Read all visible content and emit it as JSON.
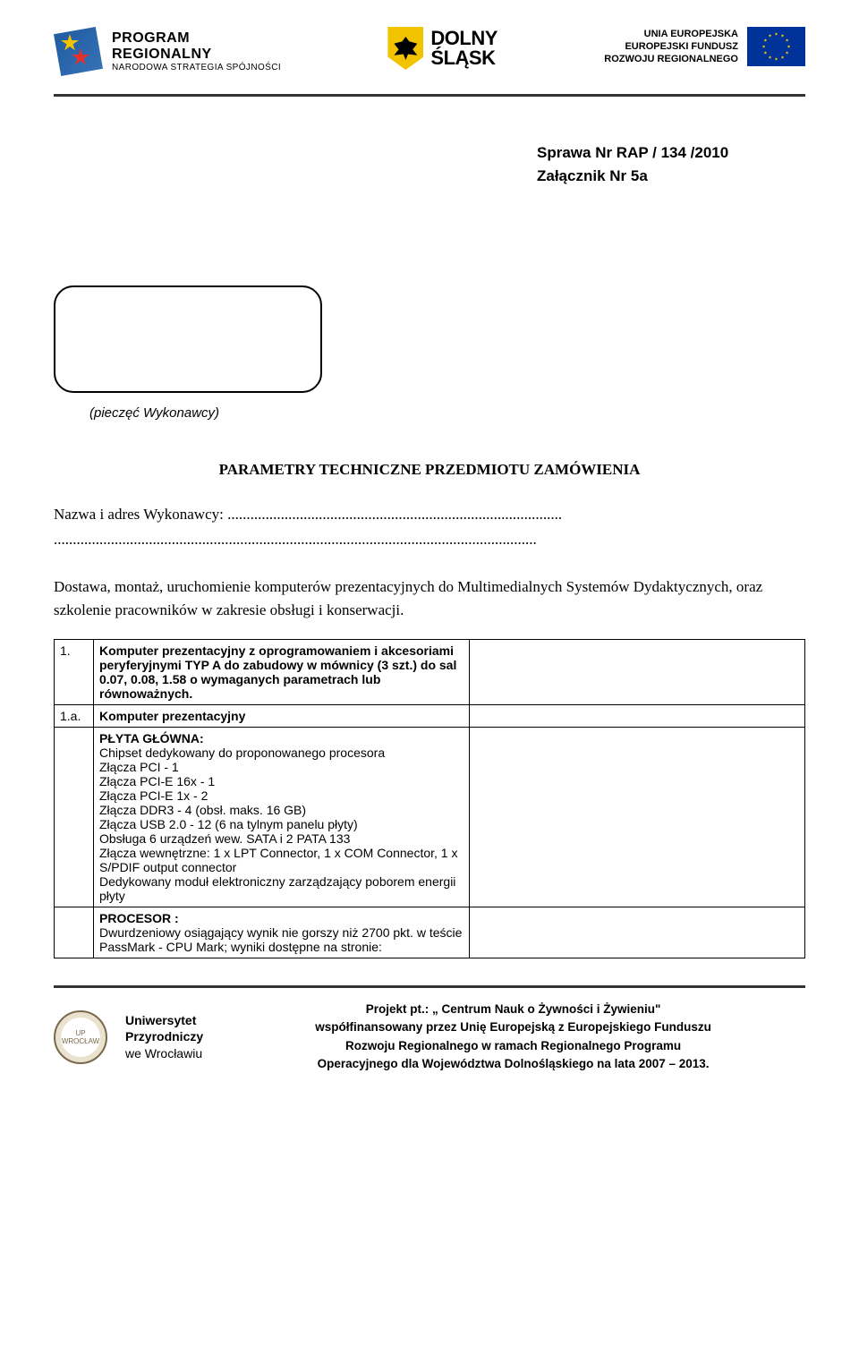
{
  "logos": {
    "program": {
      "line1": "PROGRAM",
      "line2": "REGIONALNY",
      "line3": "NARODOWA STRATEGIA SPÓJNOŚCI"
    },
    "slask": {
      "line1": "DOLNY",
      "line2": "ŚLĄSK"
    },
    "eu": {
      "line1": "UNIA EUROPEJSKA",
      "line2": "EUROPEJSKI FUNDUSZ",
      "line3": "ROZWOJU REGIONALNEGO"
    }
  },
  "case": {
    "line1": "Sprawa Nr RAP  / 134 /2010",
    "line2": " Załącznik Nr 5a"
  },
  "stamp_caption": "(pieczęć  Wykonawcy)",
  "title": "PARAMETRY  TECHNICZNE  PRZEDMIOTU  ZAMÓWIENIA",
  "contractor_label": "Nazwa i adres Wykonawcy: ........................................................................................",
  "contractor_dots": "...............................................................................................................................",
  "supply": "Dostawa, montaż, uruchomienie komputerów prezentacyjnych do Multimedialnych Systemów Dydaktycznych, oraz szkolenie pracowników w zakresie obsługi i konserwacji.",
  "table": {
    "row1": {
      "num": "1.",
      "text": "Komputer prezentacyjny z oprogramowaniem i akcesoriami peryferyjnymi TYP A do zabudowy w mównicy (3 szt.) do sal 0.07, 0.08, 1.58 o wymaganych parametrach lub równoważnych."
    },
    "row2": {
      "num": "1.a.",
      "text": "Komputer prezentacyjny"
    },
    "row3": {
      "heading": "PŁYTA GŁÓWNA",
      "l1": "Chipset dedykowany do proponowanego procesora",
      "l2": "Złącza PCI - 1",
      "l3": "Złącza PCI-E 16x - 1",
      "l4": "Złącza PCI-E 1x - 2",
      "l5": "Złącza DDR3 - 4 (obsł. maks. 16 GB)",
      "l6": "Złącza USB 2.0 - 12 (6 na tylnym panelu płyty)",
      "l7": "Obsługa 6 urządzeń wew. SATA i 2 PATA 133",
      "l8": "Złącza wewnętrzne: 1 x LPT Connector, 1 x COM Connector, 1 x S/PDIF output connector",
      "l9": "Dedykowany moduł elektroniczny zarządzający poborem energii płyty"
    },
    "row4": {
      "heading": "PROCESOR :",
      "l1": "Dwurdzeniowy osiągający wynik nie gorszy niż 2700 pkt. w teście PassMark - CPU Mark; wyniki dostępne na stronie:"
    }
  },
  "footer": {
    "uni1": "Uniwersytet",
    "uni2": "Przyrodniczy",
    "uni3": "we Wrocławiu",
    "project_label": "Projekt pt.: „ Centrum Nauk o Żywności i Żywieniu\"",
    "line2": "współfinansowany przez Unię Europejską z Europejskiego Funduszu",
    "line3": "Rozwoju Regionalnego w ramach Regionalnego Programu",
    "line4": "Operacyjnego dla Województwa Dolnośląskiego na lata 2007 – 2013."
  }
}
